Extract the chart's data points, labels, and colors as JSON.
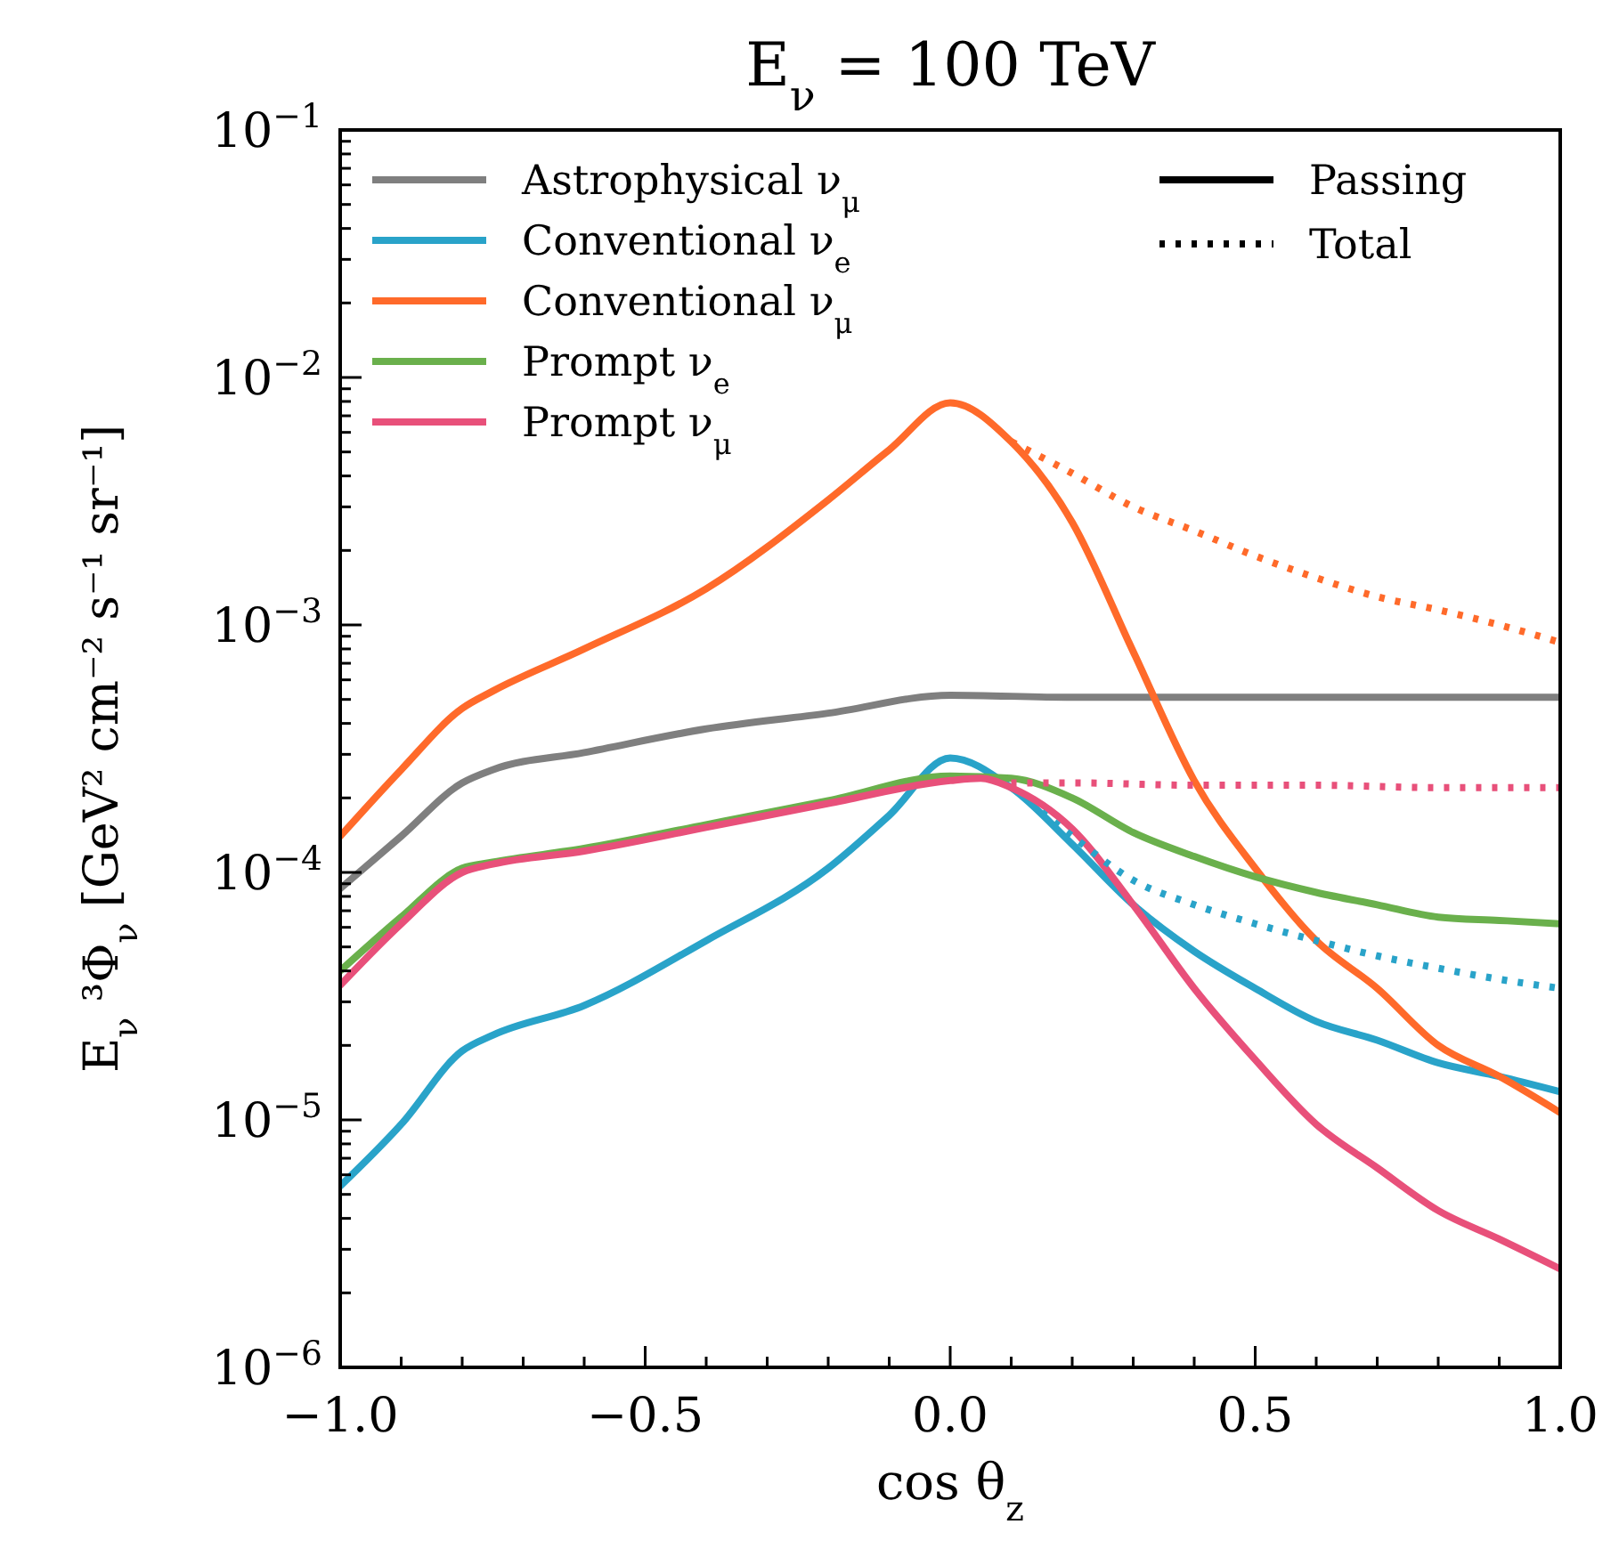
{
  "chart_data": {
    "type": "line",
    "title": "E$_{ν}$ = 100 TeV",
    "xlabel": "cos θ$_{z}$",
    "ylabel": "E$_{ν}$³Φ$_{ν}$ [GeV² cm⁻² s⁻¹ sr⁻¹]",
    "log": "y",
    "grid": false,
    "legend": "top left",
    "marker": "none",
    "xlim": [
      -1,
      1
    ],
    "ylim": [
      1e-06,
      0.1
    ],
    "xticks": [
      {
        "value": -1,
        "label": "−1.0"
      },
      {
        "value": -0.9,
        "label": null
      },
      {
        "value": -0.8,
        "label": null
      },
      {
        "value": -0.7,
        "label": null
      },
      {
        "value": -0.6,
        "label": null
      },
      {
        "value": -0.5,
        "label": "−0.5"
      },
      {
        "value": -0.4,
        "label": null
      },
      {
        "value": -0.3,
        "label": null
      },
      {
        "value": -0.2,
        "label": null
      },
      {
        "value": -0.1,
        "label": null
      },
      {
        "value": 0,
        "label": "0.0"
      },
      {
        "value": 0.1,
        "label": null
      },
      {
        "value": 0.2,
        "label": null
      },
      {
        "value": 0.3,
        "label": null
      },
      {
        "value": 0.4,
        "label": null
      },
      {
        "value": 0.5,
        "label": "0.5"
      },
      {
        "value": 0.6,
        "label": null
      },
      {
        "value": 0.7,
        "label": null
      },
      {
        "value": 0.8,
        "label": null
      },
      {
        "value": 0.9,
        "label": null
      },
      {
        "value": 1,
        "label": "1.0"
      }
    ],
    "yticks": [
      {
        "value": 1e-06,
        "label": "10$^{−6}$"
      },
      {
        "value": 2e-06,
        "label": null
      },
      {
        "value": 3e-06,
        "label": null
      },
      {
        "value": 4e-06,
        "label": null
      },
      {
        "value": 5e-06,
        "label": null
      },
      {
        "value": 6e-06,
        "label": null
      },
      {
        "value": 7e-06,
        "label": null
      },
      {
        "value": 8e-06,
        "label": null
      },
      {
        "value": 9e-06,
        "label": null
      },
      {
        "value": 1e-05,
        "label": "10$^{−5}$"
      },
      {
        "value": 2e-05,
        "label": null
      },
      {
        "value": 3e-05,
        "label": null
      },
      {
        "value": 4e-05,
        "label": null
      },
      {
        "value": 5e-05,
        "label": null
      },
      {
        "value": 6e-05,
        "label": null
      },
      {
        "value": 7e-05,
        "label": null
      },
      {
        "value": 8e-05,
        "label": null
      },
      {
        "value": 9e-05,
        "label": null
      },
      {
        "value": 0.0001,
        "label": "10$^{−4}$"
      },
      {
        "value": 0.0002,
        "label": null
      },
      {
        "value": 0.0003,
        "label": null
      },
      {
        "value": 0.0004,
        "label": null
      },
      {
        "value": 0.0005,
        "label": null
      },
      {
        "value": 0.0006,
        "label": null
      },
      {
        "value": 0.0007,
        "label": null
      },
      {
        "value": 0.0008,
        "label": null
      },
      {
        "value": 0.0009,
        "label": null
      },
      {
        "value": 0.001,
        "label": "10$^{−3}$"
      },
      {
        "value": 0.002,
        "label": null
      },
      {
        "value": 0.003,
        "label": null
      },
      {
        "value": 0.004,
        "label": null
      },
      {
        "value": 0.005,
        "label": null
      },
      {
        "value": 0.006,
        "label": null
      },
      {
        "value": 0.007,
        "label": null
      },
      {
        "value": 0.008,
        "label": null
      },
      {
        "value": 0.009,
        "label": null
      },
      {
        "value": 0.01,
        "label": "10$^{−2}$"
      },
      {
        "value": 0.02,
        "label": null
      },
      {
        "value": 0.03,
        "label": null
      },
      {
        "value": 0.04,
        "label": null
      },
      {
        "value": 0.05,
        "label": null
      },
      {
        "value": 0.06,
        "label": null
      },
      {
        "value": 0.07,
        "label": null
      },
      {
        "value": 0.08,
        "label": null
      },
      {
        "value": 0.09,
        "label": null
      },
      {
        "value": 0.1,
        "label": "10$^{−1}$"
      }
    ],
    "annotations": [
      "Passing",
      "Total"
    ],
    "series": [
      {
        "name": "Astrophysical ν$_{μ}$",
        "color": "#7f7f7f",
        "line_style": "solid",
        "x": [
          -1,
          -0.9,
          -0.8,
          -0.75,
          -0.6,
          -0.4,
          -0.2,
          0,
          0.2,
          0.4,
          0.6,
          0.8,
          1
        ],
        "values": [
          8.6e-05,
          0.00014,
          0.00023,
          0.00026,
          0.000305,
          0.00038,
          0.00044,
          0.00052,
          0.00051,
          0.00051,
          0.00051,
          0.00051,
          0.00051
        ]
      },
      {
        "name": "Conventional ν$_{e}$",
        "color": "#29a3c9",
        "line_style": "solid",
        "x": [
          -1,
          -0.9,
          -0.8,
          -0.75,
          -0.6,
          -0.4,
          -0.2,
          -0.1,
          0,
          0.1,
          0.2,
          0.3,
          0.4,
          0.5,
          0.6,
          0.7,
          0.8,
          0.9,
          1
        ],
        "values": [
          5.4e-06,
          9.6e-06,
          1.9e-05,
          2.2e-05,
          2.9e-05,
          5.3e-05,
          0.000104,
          0.00017,
          0.00029,
          0.00022,
          0.00013,
          7.4e-05,
          4.8e-05,
          3.4e-05,
          2.5e-05,
          2.1e-05,
          1.7e-05,
          1.5e-05,
          1.3e-05
        ]
      },
      {
        "name": "Conventional ν$_{μ}$",
        "color": "#ff6a2a",
        "line_style": "solid",
        "x": [
          -1,
          -0.9,
          -0.8,
          -0.75,
          -0.6,
          -0.4,
          -0.2,
          -0.1,
          0,
          0.1,
          0.2,
          0.3,
          0.4,
          0.5,
          0.6,
          0.7,
          0.8,
          0.9,
          1
        ],
        "values": [
          0.00014,
          0.00026,
          0.00046,
          0.00054,
          0.0008,
          0.0014,
          0.0032,
          0.0051,
          0.0079,
          0.0055,
          0.0026,
          0.00078,
          0.000235,
          0.000104,
          5.3e-05,
          3.4e-05,
          2e-05,
          1.5e-05,
          1.07e-05
        ]
      },
      {
        "name": "Prompt ν$_{e}$",
        "color": "#6ab04c",
        "line_style": "solid",
        "x": [
          -1,
          -0.9,
          -0.8,
          -0.75,
          -0.6,
          -0.4,
          -0.2,
          0,
          0.1,
          0.2,
          0.3,
          0.4,
          0.5,
          0.6,
          0.7,
          0.8,
          0.9,
          1
        ],
        "values": [
          4e-05,
          6.6e-05,
          0.000104,
          0.00011,
          0.000125,
          0.000156,
          0.000195,
          0.000245,
          0.00024,
          0.0002,
          0.000145,
          0.000116,
          9.6e-05,
          8.3e-05,
          7.4e-05,
          6.6e-05,
          6.4e-05,
          6.2e-05
        ]
      },
      {
        "name": "Prompt ν$_{μ}$",
        "color": "#e8507a",
        "line_style": "solid",
        "x": [
          -1,
          -0.9,
          -0.8,
          -0.75,
          -0.6,
          -0.4,
          -0.2,
          0,
          0.05,
          0.1,
          0.2,
          0.3,
          0.4,
          0.5,
          0.6,
          0.7,
          0.8,
          0.9,
          1
        ],
        "values": [
          3.5e-05,
          6.2e-05,
          0.0001,
          0.000108,
          0.000122,
          0.000152,
          0.00019,
          0.000235,
          0.00024,
          0.00022,
          0.00015,
          7.4e-05,
          3.4e-05,
          1.75e-05,
          9.6e-06,
          6.4e-06,
          4.3e-06,
          3.3e-06,
          2.5e-06
        ]
      },
      {
        "color": "#29a3c9",
        "line_style": "dotted",
        "x": [
          0.15,
          0.2,
          0.3,
          0.4,
          0.5,
          0.6,
          0.7,
          0.8,
          0.9,
          1
        ],
        "values": [
          0.000175,
          0.00014,
          9.3e-05,
          7.4e-05,
          6.2e-05,
          5.3e-05,
          4.6e-05,
          4.1e-05,
          3.7e-05,
          3.4e-05
        ]
      },
      {
        "color": "#ff6a2a",
        "line_style": "dotted",
        "x": [
          0.1,
          0.2,
          0.3,
          0.4,
          0.5,
          0.6,
          0.7,
          0.8,
          0.9,
          1
        ],
        "values": [
          0.0055,
          0.0041,
          0.003,
          0.0024,
          0.0019,
          0.00155,
          0.0013,
          0.00115,
          0.001,
          0.00085
        ]
      },
      {
        "color": "#e8507a",
        "line_style": "dotted",
        "x": [
          0.1,
          0.2,
          0.4,
          0.6,
          0.8,
          1
        ],
        "values": [
          0.00023,
          0.00023,
          0.000225,
          0.000225,
          0.00022,
          0.00022
        ]
      }
    ]
  }
}
